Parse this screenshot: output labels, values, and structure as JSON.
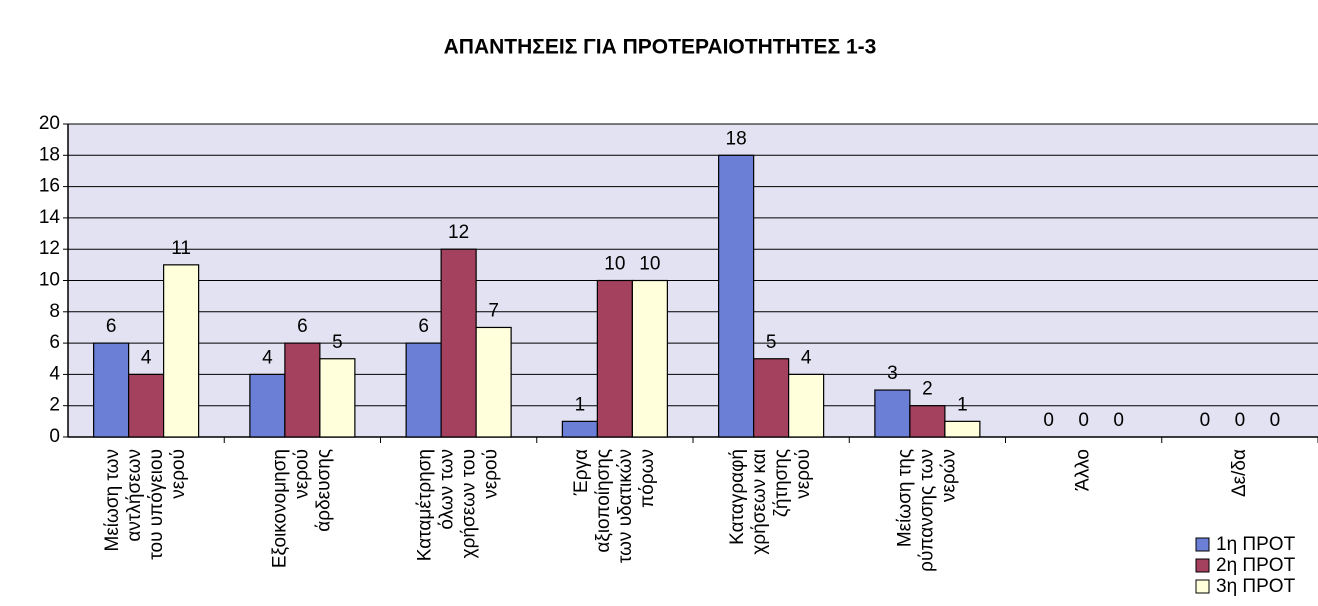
{
  "chart_data": {
    "type": "bar",
    "title": "ΑΠΑΝΤΗΣΕΙΣ ΓΙΑ ΠΡΟΤΕΡΑΙΟΤΗΤΗΤΕΣ 1-3",
    "categories": [
      "Μείωση των αντλήσεων του υπόγειου νερού",
      "Εξοικονομηση νερού άρδευσης",
      "Καταμέτρηση όλων των χρήσεων του νερού",
      "Έργα αξιοποίησης των υδατικών πόρων",
      "Καταγραφή χρήσεων και ζήτησης νερού",
      "Μείωση της ρύπανσης των νερών",
      "Άλλο",
      "Δε/δα"
    ],
    "series": [
      {
        "name": "1η ΠΡΟΤ",
        "color": "#6b7fd7",
        "values": [
          6,
          4,
          6,
          1,
          18,
          3,
          0,
          0
        ]
      },
      {
        "name": "2η ΠΡΟΤ",
        "color": "#a3415f",
        "values": [
          4,
          6,
          12,
          10,
          5,
          2,
          0,
          0
        ]
      },
      {
        "name": "3η ΠΡΟΤ",
        "color": "#ffffdc",
        "values": [
          11,
          5,
          7,
          10,
          4,
          1,
          0,
          0
        ]
      }
    ],
    "ylim": [
      0,
      20
    ],
    "yticks": [
      0,
      2,
      4,
      6,
      8,
      10,
      12,
      14,
      16,
      18,
      20
    ],
    "grid": true,
    "legend": "bottom-right"
  }
}
